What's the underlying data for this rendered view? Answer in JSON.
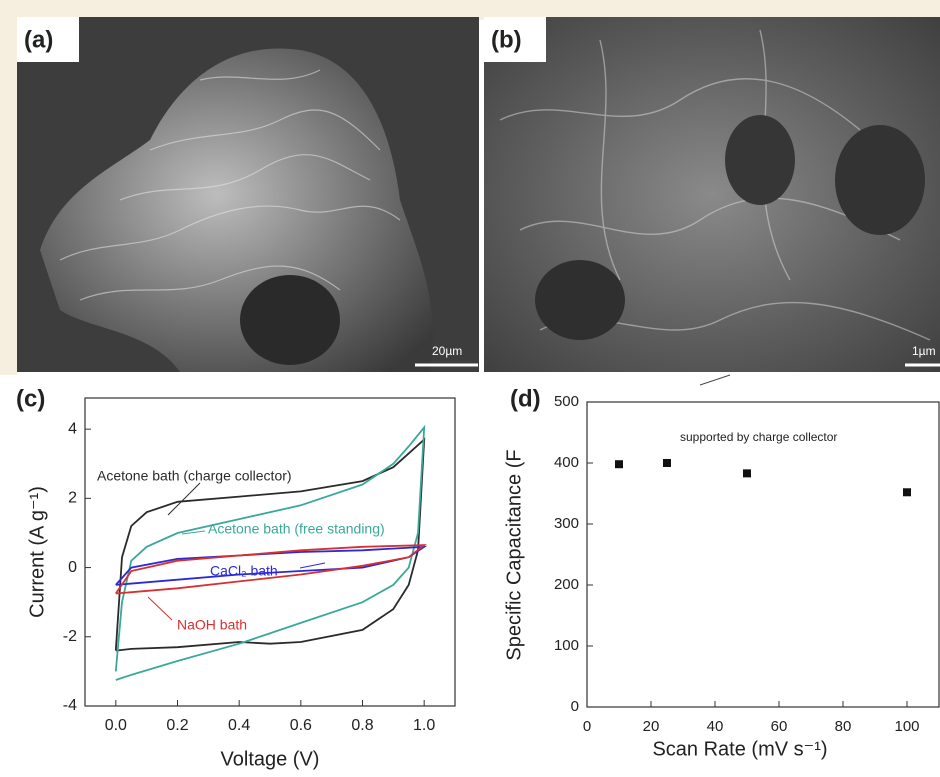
{
  "images": [
    {
      "label": "(a)",
      "scale_bar": "20µm"
    },
    {
      "label": "(b)",
      "scale_bar": "1µm"
    }
  ],
  "chart_data": [
    {
      "type": "line",
      "panel_label": "(c)",
      "xlabel": "Voltage (V)",
      "ylabel": "Current (A g⁻¹)",
      "xlim": [
        -0.1,
        1.1
      ],
      "ylim": [
        -4,
        4.9
      ],
      "xticks": [
        {
          "value": 0,
          "label": "0.0"
        },
        0.2,
        0.4,
        0.6,
        0.8,
        {
          "value": 1,
          "label": "1.0"
        }
      ],
      "yticks": [
        -4,
        -2,
        0,
        2,
        4
      ],
      "series": [
        {
          "name": "Acetone bath (charge collector)",
          "color": "#2b2b2b",
          "x": [
            0,
            0.02,
            0.05,
            0.1,
            0.2,
            0.4,
            0.6,
            0.8,
            0.9,
            0.95,
            1.0,
            0.98,
            0.95,
            0.9,
            0.8,
            0.6,
            0.5,
            0.4,
            0.2,
            0.05,
            0
          ],
          "values": [
            -2.4,
            0.3,
            1.2,
            1.6,
            1.9,
            2.05,
            2.2,
            2.5,
            2.9,
            3.3,
            3.7,
            0.5,
            -0.5,
            -1.2,
            -1.8,
            -2.15,
            -2.2,
            -2.15,
            -2.3,
            -2.35,
            -2.4
          ]
        },
        {
          "name": "Acetone bath (free standing)",
          "color": "#3aa89a",
          "x": [
            0,
            0.02,
            0.05,
            0.1,
            0.2,
            0.4,
            0.6,
            0.8,
            0.9,
            0.95,
            1.0,
            0.98,
            0.95,
            0.9,
            0.8,
            0.6,
            0.4,
            0.2,
            0.05,
            0
          ],
          "values": [
            -3.0,
            -1.0,
            0.2,
            0.6,
            1.0,
            1.4,
            1.8,
            2.4,
            3.0,
            3.5,
            4.05,
            1.0,
            0.0,
            -0.5,
            -1.0,
            -1.6,
            -2.2,
            -2.7,
            -3.1,
            -3.25
          ]
        },
        {
          "name": "CaCl₂ bath",
          "color": "#2a2ad8",
          "x": [
            0,
            0.05,
            0.2,
            0.4,
            0.6,
            0.8,
            1.0,
            0.95,
            0.8,
            0.6,
            0.4,
            0.2,
            0
          ],
          "values": [
            -0.5,
            0.0,
            0.25,
            0.35,
            0.45,
            0.5,
            0.6,
            0.3,
            0.0,
            -0.1,
            -0.2,
            -0.35,
            -0.5
          ]
        },
        {
          "name": "NaOH bath",
          "color": "#d83030",
          "x": [
            0,
            0.05,
            0.2,
            0.4,
            0.6,
            0.8,
            1.0,
            0.95,
            0.8,
            0.6,
            0.4,
            0.2,
            0
          ],
          "values": [
            -0.75,
            -0.1,
            0.2,
            0.35,
            0.5,
            0.6,
            0.65,
            0.3,
            0.05,
            -0.2,
            -0.4,
            -0.6,
            -0.75
          ]
        }
      ]
    },
    {
      "type": "scatter",
      "panel_label": "(d)",
      "xlabel": "Scan Rate (mV s⁻¹)",
      "ylabel": "Specific Capacitance (F",
      "annotation": "supported by charge collector",
      "xlim": [
        0,
        110
      ],
      "ylim": [
        0,
        500
      ],
      "xticks": [
        0,
        20,
        40,
        60,
        80,
        100
      ],
      "yticks": [
        0,
        100,
        200,
        300,
        400,
        500
      ],
      "color": "#111111",
      "x": [
        10,
        25,
        50,
        100
      ],
      "values": [
        398,
        400,
        383,
        352
      ]
    }
  ]
}
